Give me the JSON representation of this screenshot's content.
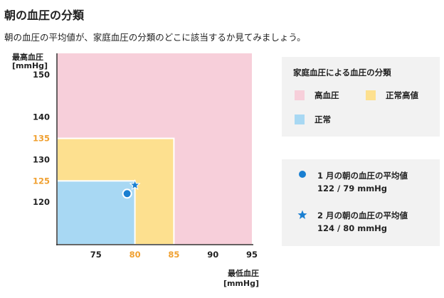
{
  "page": {
    "title": "朝の血圧の分類",
    "subtitle": "朝の血圧の平均値が、家庭血圧の分類のどこに該当するか見てみましょう。"
  },
  "legend": {
    "title": "家庭血圧による血圧の分類",
    "items": [
      {
        "label": "高血圧",
        "color": "#f7cfda"
      },
      {
        "label": "正常高値",
        "color": "#fde08f"
      },
      {
        "label": "正常",
        "color": "#a8d8f3"
      }
    ]
  },
  "points_legend": {
    "items": [
      {
        "marker": "circle-icon",
        "line1": "1 月の朝の血圧の平均値",
        "line2": "122 / 79 mmHg",
        "color": "#1a7fd1"
      },
      {
        "marker": "star-icon",
        "line1": "2 月の朝の血圧の平均値",
        "line2": "124 / 80 mmHg",
        "color": "#1a7fd1"
      }
    ]
  },
  "chart_data": {
    "type": "scatter",
    "xlabel": "最低血圧\n[mmHg]",
    "ylabel": "最高血圧\n[mmHg]",
    "xlim": [
      70,
      95
    ],
    "ylim": [
      110,
      155
    ],
    "x_ticks": [
      {
        "value": 75,
        "label": "75",
        "highlight": false
      },
      {
        "value": 80,
        "label": "80",
        "highlight": true
      },
      {
        "value": 85,
        "label": "85",
        "highlight": true
      },
      {
        "value": 90,
        "label": "90",
        "highlight": false
      },
      {
        "value": 95,
        "label": "95",
        "highlight": false
      }
    ],
    "y_ticks": [
      {
        "value": 120,
        "label": "120",
        "highlight": false
      },
      {
        "value": 125,
        "label": "125",
        "highlight": true
      },
      {
        "value": 130,
        "label": "130",
        "highlight": false
      },
      {
        "value": 135,
        "label": "135",
        "highlight": true
      },
      {
        "value": 140,
        "label": "140",
        "highlight": false
      },
      {
        "value": 150,
        "label": "150",
        "highlight": false
      }
    ],
    "regions": [
      {
        "name": "高血圧",
        "x_max": 95,
        "y_max": 155,
        "color": "#f7cfda"
      },
      {
        "name": "正常高値",
        "x_max": 85,
        "y_max": 135,
        "color": "#fde08f"
      },
      {
        "name": "正常",
        "x_max": 80,
        "y_max": 125,
        "color": "#a8d8f3"
      }
    ],
    "points": [
      {
        "name": "1 月の朝の血圧の平均値",
        "x": 79,
        "y": 122,
        "marker": "circle"
      },
      {
        "name": "2 月の朝の血圧の平均値",
        "x": 80,
        "y": 124,
        "marker": "star"
      }
    ],
    "highlight_color": "#f0a030",
    "point_color": "#1a7fd1"
  }
}
